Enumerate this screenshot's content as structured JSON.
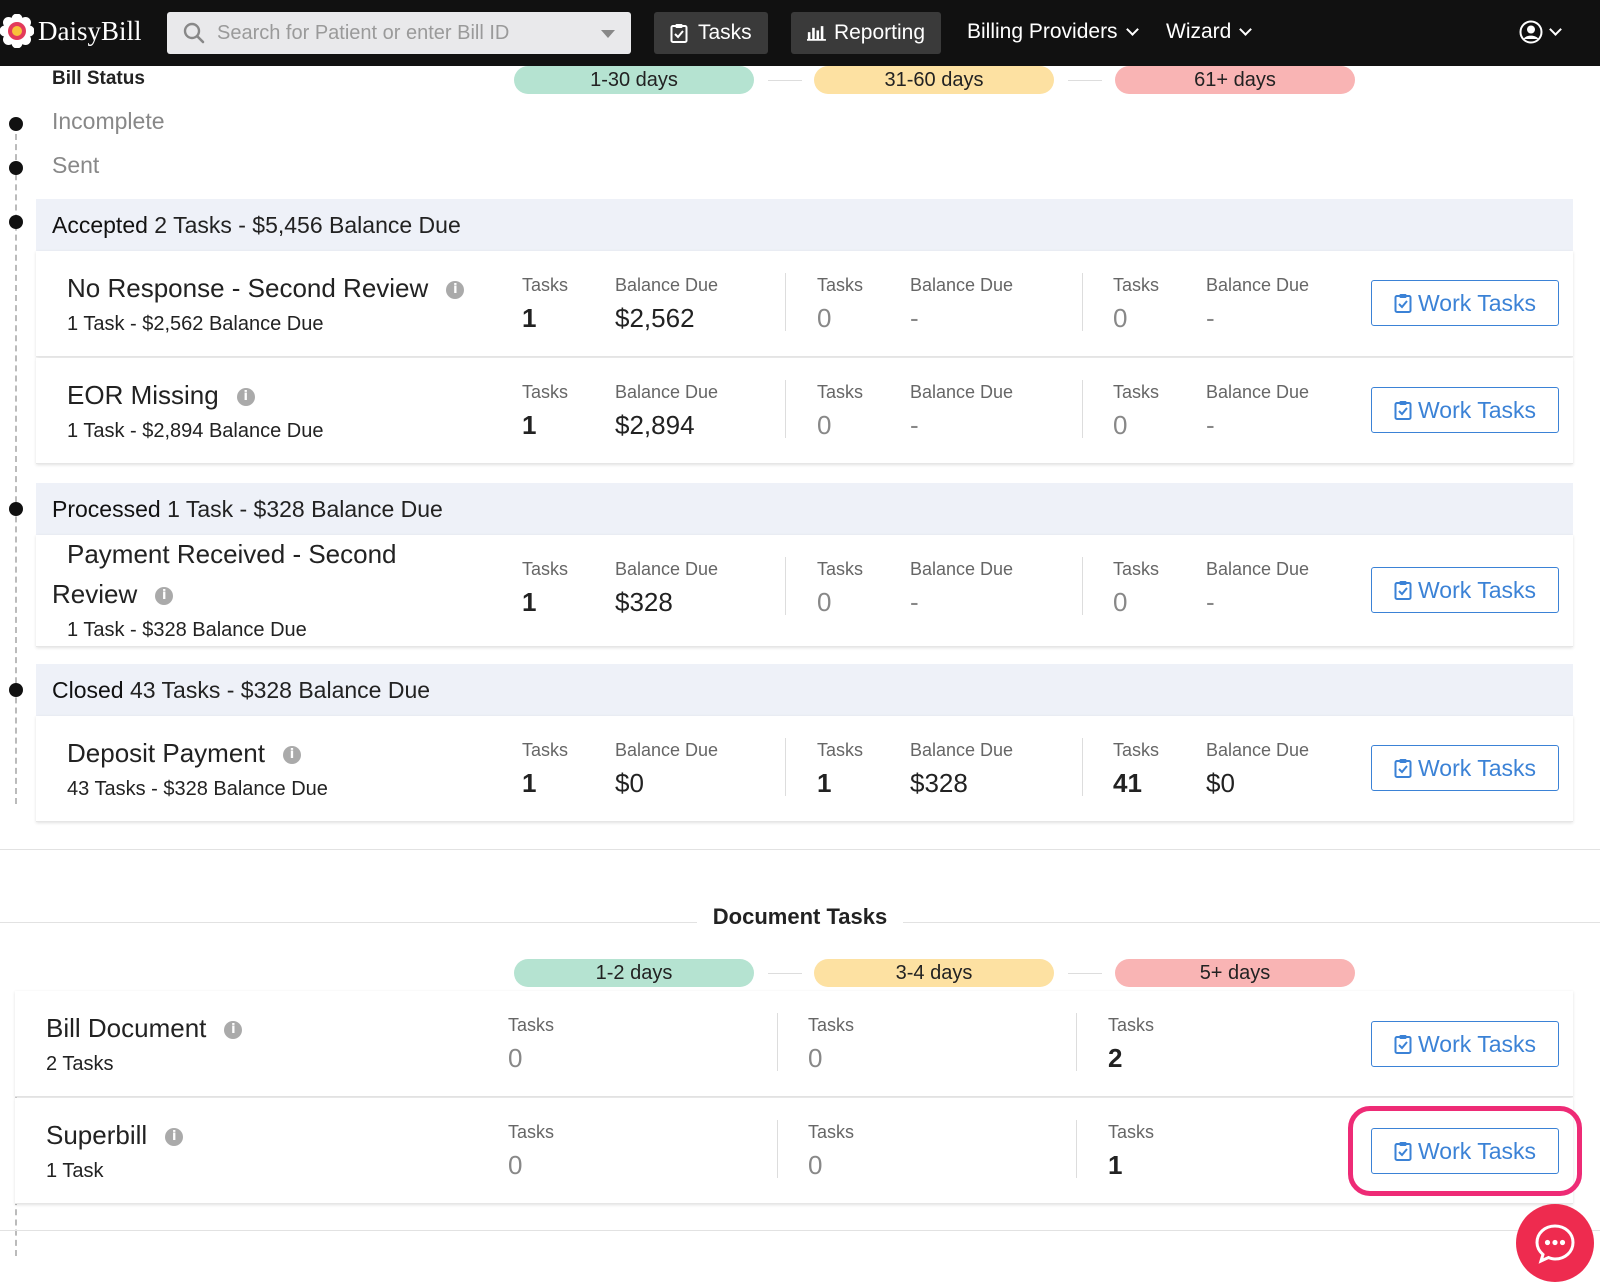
{
  "nav": {
    "brand": "DaisyBill",
    "search_placeholder": "Search for Patient or enter Bill ID",
    "tasks_label": "Tasks",
    "reporting_label": "Reporting",
    "billing_providers_label": "Billing Providers",
    "wizard_label": "Wizard"
  },
  "bill_status": {
    "heading": "Bill Status",
    "pills": [
      "1-30 days",
      "31-60 days",
      "61+ days"
    ],
    "statuses": [
      "Incomplete",
      "Sent"
    ],
    "col_tasks": "Tasks",
    "col_balance": "Balance Due",
    "groups": [
      {
        "name": "Accepted",
        "summary": "2 Tasks - $5,456 Balance Due",
        "rows": [
          {
            "title": "No Response - Second Review",
            "sub": "1 Task - $2,562 Balance Due",
            "cols": [
              {
                "tasks": "1",
                "balance": "$2,562"
              },
              {
                "tasks": "0",
                "balance": "-"
              },
              {
                "tasks": "0",
                "balance": "-"
              }
            ]
          },
          {
            "title": "EOR Missing",
            "sub": "1 Task - $2,894 Balance Due",
            "cols": [
              {
                "tasks": "1",
                "balance": "$2,894"
              },
              {
                "tasks": "0",
                "balance": "-"
              },
              {
                "tasks": "0",
                "balance": "-"
              }
            ]
          }
        ]
      },
      {
        "name": "Processed",
        "summary": "1 Task - $328 Balance Due",
        "rows": [
          {
            "title_line1": "Payment Received - Second",
            "title_line2": "Review",
            "sub": "1 Task - $328 Balance Due",
            "cols": [
              {
                "tasks": "1",
                "balance": "$328"
              },
              {
                "tasks": "0",
                "balance": "-"
              },
              {
                "tasks": "0",
                "balance": "-"
              }
            ]
          }
        ]
      },
      {
        "name": "Closed",
        "summary": "43 Tasks - $328 Balance Due",
        "rows": [
          {
            "title": "Deposit Payment",
            "sub": "43 Tasks - $328 Balance Due",
            "cols": [
              {
                "tasks": "1",
                "balance": "$0"
              },
              {
                "tasks": "1",
                "balance": "$328"
              },
              {
                "tasks": "41",
                "balance": "$0"
              }
            ]
          }
        ]
      }
    ]
  },
  "document_tasks": {
    "heading": "Document Tasks",
    "pills": [
      "1-2 days",
      "3-4 days",
      "5+ days"
    ],
    "col_tasks": "Tasks",
    "rows": [
      {
        "title": "Bill Document",
        "sub": "2 Tasks",
        "tasks": [
          "0",
          "0",
          "2"
        ]
      },
      {
        "title": "Superbill",
        "sub": "1 Task",
        "tasks": [
          "0",
          "0",
          "1"
        ]
      }
    ]
  },
  "work_tasks_label": "Work Tasks",
  "info_glyph": "i",
  "colors": {
    "accent": "#3b82d6",
    "highlight": "#ee2b76",
    "pill_green": "#b5e3d1",
    "pill_yellow": "#fde1a2",
    "pill_red": "#f9b4b4"
  }
}
